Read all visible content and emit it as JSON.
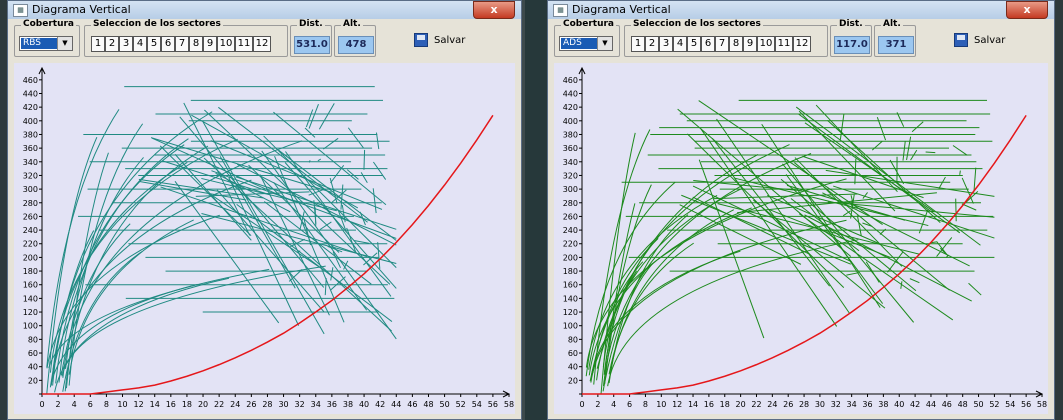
{
  "windows": [
    {
      "title": "Diagrama Vertical",
      "cobertura_label": "Cobertura",
      "cobertura_value": "RBS",
      "sectores_label": "Seleccion de los sectores",
      "sectors": [
        "1",
        "2",
        "3",
        "4",
        "5",
        "6",
        "7",
        "8",
        "9",
        "10",
        "11",
        "12"
      ],
      "dist_label": "Dist.",
      "dist_value": "531.0",
      "alt_label": "Alt.",
      "alt_value": "478",
      "save_label": "Salvar",
      "close_label": "x",
      "track_color": "#1f8a82",
      "curve_color": "#e5171a"
    },
    {
      "title": "Diagrama Vertical",
      "cobertura_label": "Cobertura",
      "cobertura_value": "ADS",
      "sectores_label": "Seleccion de los sectores",
      "sectors": [
        "1",
        "2",
        "3",
        "4",
        "5",
        "6",
        "7",
        "8",
        "9",
        "10",
        "11",
        "12"
      ],
      "dist_label": "Dist.",
      "dist_value": "117.0",
      "alt_label": "Alt.",
      "alt_value": "371",
      "save_label": "Salvar",
      "close_label": "x",
      "track_color": "#1d8a1d",
      "curve_color": "#e5171a"
    }
  ],
  "chart_data": {
    "type": "scatter",
    "x_ticks": [
      0,
      2,
      4,
      6,
      8,
      10,
      12,
      14,
      16,
      18,
      20,
      22,
      24,
      26,
      28,
      30,
      32,
      34,
      36,
      38,
      40,
      42,
      44,
      46,
      48,
      50,
      52,
      54,
      56,
      58
    ],
    "y_ticks": [
      0,
      20,
      40,
      60,
      80,
      100,
      120,
      140,
      160,
      180,
      200,
      220,
      240,
      260,
      280,
      300,
      320,
      340,
      360,
      380,
      400,
      420,
      440,
      460
    ],
    "xlim": [
      0,
      58
    ],
    "ylim": [
      0,
      470
    ],
    "coverage_curve": {
      "x": [
        0,
        6,
        8,
        10,
        12,
        14,
        16,
        18,
        20,
        22,
        24,
        26,
        28,
        30,
        32,
        34,
        36,
        38,
        40,
        42,
        44,
        46,
        48,
        50,
        52,
        54,
        56
      ],
      "y": [
        0,
        0,
        3,
        6,
        9,
        13,
        19,
        26,
        34,
        43,
        53,
        64,
        76,
        89,
        104,
        120,
        137,
        156,
        176,
        198,
        222,
        248,
        276,
        306,
        338,
        372,
        408
      ]
    }
  }
}
